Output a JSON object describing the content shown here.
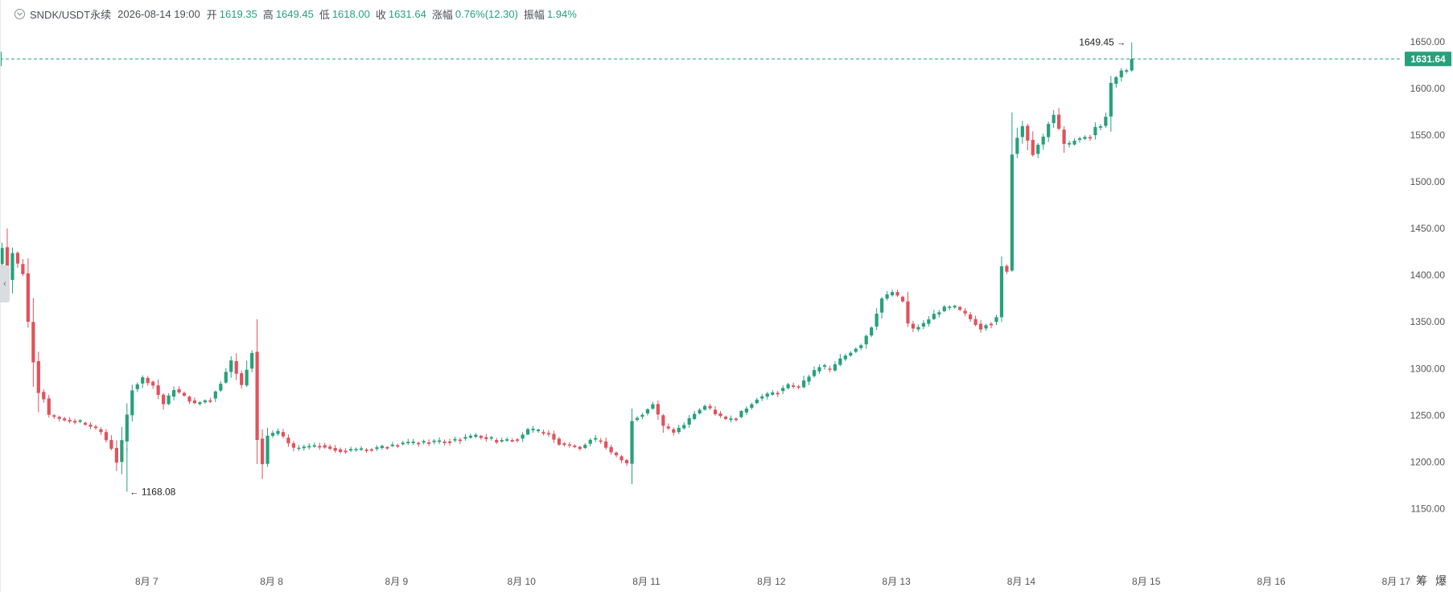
{
  "header": {
    "symbol": "SNDK/USDT永续",
    "timestamp": "2026-08-14 19:00",
    "open_label": "开",
    "open": "1619.35",
    "high_label": "高",
    "high": "1649.45",
    "low_label": "低",
    "low": "1618.00",
    "close_label": "收",
    "close": "1631.64",
    "change_label": "涨幅",
    "change": "0.76%(12.30)",
    "amplitude_label": "振幅",
    "amplitude": "1.94%"
  },
  "colors": {
    "up": "#26a17b",
    "down": "#e0525c",
    "price_line": "#26a17b",
    "text": "#4a4f57",
    "axis_text": "#555555"
  },
  "icons": {
    "collapse": "chevron-down-circle-icon",
    "left_handle": "panel-expand-icon"
  },
  "bottom_buttons": [
    "筹",
    "爆"
  ],
  "chart_data": {
    "type": "candlestick",
    "interval": "1h",
    "y_ticks": [
      "1150.00",
      "1200.00",
      "1250.00",
      "1300.00",
      "1350.00",
      "1400.00",
      "1450.00",
      "1500.00",
      "1550.00",
      "1600.00",
      "1650.00"
    ],
    "ylim": [
      1132,
      1672
    ],
    "x_ticks": [
      {
        "label": "8月 7",
        "hour": 0
      },
      {
        "label": "8月 8",
        "hour": 24
      },
      {
        "label": "8月 9",
        "hour": 48
      },
      {
        "label": "8月 10",
        "hour": 72
      },
      {
        "label": "8月 11",
        "hour": 96
      },
      {
        "label": "8月 12",
        "hour": 120
      },
      {
        "label": "8月 13",
        "hour": 144
      },
      {
        "label": "8月 14",
        "hour": 168
      },
      {
        "label": "8月 15",
        "hour": 192
      },
      {
        "label": "8月 16",
        "hour": 216
      },
      {
        "label": "8月 17",
        "hour": 240
      }
    ],
    "xlim_hours": [
      -27,
      248
    ],
    "last_price": "1631.64",
    "last_value": 1631.64,
    "max_label": "1649.45",
    "max_value": 1649.45,
    "min_label": "1168.08",
    "min_value": 1168.08,
    "anchors": [
      [
        -27,
        1418,
        1
      ],
      [
        -26,
        1412,
        1
      ],
      [
        -25,
        1430,
        1
      ],
      [
        -24,
        1395,
        1
      ],
      [
        -23,
        1424,
        1
      ],
      [
        -22,
        1412,
        1
      ],
      [
        -21,
        1402,
        1
      ],
      [
        -20,
        1350,
        1
      ],
      [
        -19,
        1308,
        1
      ],
      [
        -18,
        1275,
        1
      ],
      [
        -17,
        1268,
        1
      ],
      [
        -16,
        1250,
        1
      ],
      [
        -13,
        1245,
        1
      ],
      [
        -10,
        1242,
        1
      ],
      [
        -8,
        1238,
        1
      ],
      [
        -6,
        1232,
        1
      ],
      [
        -4,
        1215,
        1
      ],
      [
        -3,
        1200,
        1
      ],
      [
        -2,
        1222,
        1
      ],
      [
        0,
        1278,
        1
      ],
      [
        2,
        1290,
        1
      ],
      [
        4,
        1282,
        1
      ],
      [
        6,
        1262,
        1
      ],
      [
        8,
        1278,
        1
      ],
      [
        10,
        1270,
        1
      ],
      [
        12,
        1262,
        1
      ],
      [
        15,
        1268,
        1
      ],
      [
        17,
        1285,
        1
      ],
      [
        19,
        1308,
        1
      ],
      [
        21,
        1282,
        1
      ],
      [
        23,
        1318,
        1
      ],
      [
        24,
        1225,
        1
      ],
      [
        25,
        1198,
        1
      ],
      [
        26,
        1228,
        1
      ],
      [
        28,
        1232,
        1
      ],
      [
        31,
        1214,
        1
      ],
      [
        36,
        1218,
        1
      ],
      [
        40,
        1212,
        1
      ],
      [
        46,
        1214,
        1
      ],
      [
        52,
        1220,
        1
      ],
      [
        60,
        1222,
        1
      ],
      [
        66,
        1228,
        1
      ],
      [
        70,
        1222,
        1
      ],
      [
        74,
        1225,
        1
      ],
      [
        76,
        1234,
        1
      ],
      [
        80,
        1230,
        1
      ],
      [
        82,
        1220,
        1
      ],
      [
        86,
        1215,
        1
      ],
      [
        88,
        1224,
        1
      ],
      [
        90,
        1222,
        1
      ],
      [
        92,
        1210,
        1
      ],
      [
        94,
        1202,
        1
      ],
      [
        95,
        1198,
        1
      ],
      [
        96,
        1245,
        1
      ],
      [
        98,
        1252,
        1
      ],
      [
        100,
        1262,
        1
      ],
      [
        102,
        1238,
        1
      ],
      [
        104,
        1232,
        1
      ],
      [
        106,
        1240,
        1
      ],
      [
        108,
        1252,
        1
      ],
      [
        110,
        1260,
        1
      ],
      [
        112,
        1252,
        1
      ],
      [
        114,
        1245,
        1
      ],
      [
        116,
        1248,
        1
      ],
      [
        118,
        1258,
        1
      ],
      [
        120,
        1268,
        1
      ],
      [
        122,
        1272,
        1
      ],
      [
        124,
        1276,
        1
      ],
      [
        126,
        1282,
        1
      ],
      [
        128,
        1280,
        1
      ],
      [
        130,
        1292,
        1
      ],
      [
        132,
        1302,
        1
      ],
      [
        134,
        1298,
        1
      ],
      [
        136,
        1310,
        1
      ],
      [
        138,
        1318,
        1
      ],
      [
        140,
        1326,
        1
      ],
      [
        142,
        1345,
        1
      ],
      [
        144,
        1375,
        1
      ],
      [
        146,
        1382,
        1
      ],
      [
        148,
        1372,
        1
      ],
      [
        149,
        1348,
        1
      ],
      [
        150,
        1342,
        1
      ],
      [
        152,
        1348,
        1
      ],
      [
        154,
        1358,
        1
      ],
      [
        156,
        1365,
        1
      ],
      [
        158,
        1366,
        1
      ],
      [
        160,
        1358,
        1
      ],
      [
        162,
        1348,
        1
      ],
      [
        163,
        1343,
        1
      ],
      [
        164,
        1348,
        1
      ],
      [
        165,
        1350,
        1
      ],
      [
        166,
        1355,
        1
      ],
      [
        167,
        1410,
        1
      ],
      [
        168,
        1405,
        1
      ],
      [
        169,
        1530,
        1
      ],
      [
        170,
        1548,
        1
      ],
      [
        171,
        1560,
        1
      ],
      [
        172,
        1545,
        1
      ],
      [
        173,
        1530,
        1
      ],
      [
        174,
        1540,
        1
      ],
      [
        175,
        1548,
        1
      ],
      [
        176,
        1563,
        1
      ],
      [
        177,
        1572,
        1
      ],
      [
        178,
        1556,
        1
      ],
      [
        179,
        1540,
        1
      ],
      [
        180,
        1540,
        1
      ],
      [
        181,
        1545,
        1
      ],
      [
        182,
        1546,
        1
      ],
      [
        183,
        1548,
        1
      ],
      [
        184,
        1550,
        1
      ],
      [
        185,
        1558,
        1
      ],
      [
        186,
        1560,
        1
      ],
      [
        187,
        1570,
        1
      ],
      [
        188,
        1605,
        1
      ],
      [
        189,
        1612,
        1
      ],
      [
        190,
        1618,
        1
      ],
      [
        191,
        1619,
        1
      ]
    ],
    "last_candle": {
      "o": 1619.35,
      "h": 1649.45,
      "l": 1618.0,
      "c": 1631.64
    }
  }
}
